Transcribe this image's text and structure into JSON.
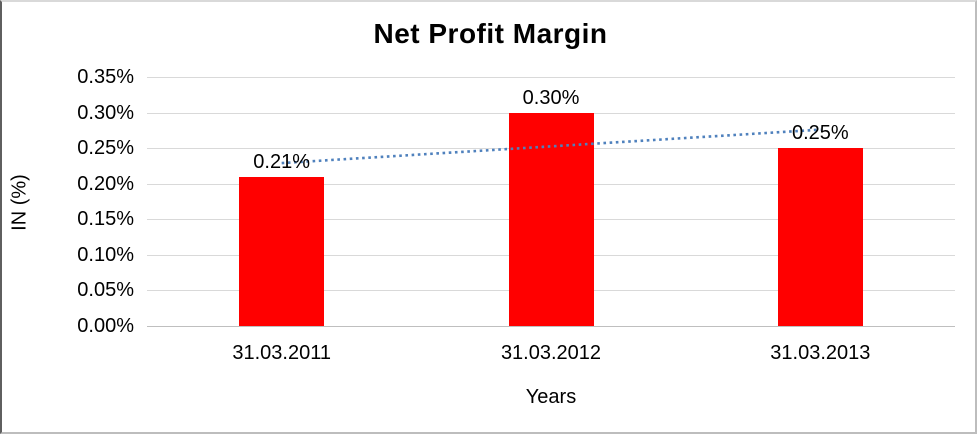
{
  "chart_data": {
    "type": "bar",
    "title": "Net Profit Margin",
    "categories": [
      "31.03.2011",
      "31.03.2012",
      "31.03.2013"
    ],
    "values": [
      0.21,
      0.3,
      0.25
    ],
    "bar_labels": [
      "0.21%",
      "0.30%",
      "0.25%"
    ],
    "xlabel": "Years",
    "ylabel": "IN (%)",
    "ylim": [
      0,
      0.35
    ],
    "ytick_step": 0.05,
    "ytick_labels": [
      "0.00%",
      "0.05%",
      "0.10%",
      "0.15%",
      "0.20%",
      "0.25%",
      "0.30%",
      "0.35%"
    ],
    "grid": true,
    "legend": "none",
    "bar_color": "#ff0000",
    "gridline_color": "#d9d9d9",
    "trendline": {
      "type": "linear",
      "style": "dotted",
      "color": "#4f81bd",
      "start_value": 0.229,
      "end_value": 0.276
    }
  }
}
